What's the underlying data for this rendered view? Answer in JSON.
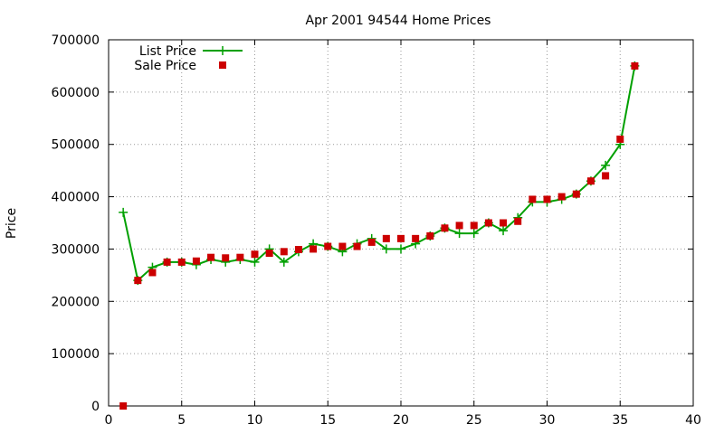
{
  "chart_data": {
    "type": "line",
    "title": "Apr 2001 94544 Home Prices",
    "xlabel": "",
    "ylabel": "Price",
    "xlim": [
      0,
      40
    ],
    "ylim": [
      0,
      700000
    ],
    "xticks": [
      0,
      5,
      10,
      15,
      20,
      25,
      30,
      35,
      40
    ],
    "yticks": [
      0,
      100000,
      200000,
      300000,
      400000,
      500000,
      600000,
      700000
    ],
    "grid": true,
    "legend_position": "top-left",
    "series": [
      {
        "name": "List Price",
        "style": "linespoints",
        "marker": "plus",
        "color": "#00a000",
        "x": [
          1,
          2,
          3,
          4,
          5,
          6,
          7,
          8,
          9,
          10,
          11,
          12,
          13,
          14,
          15,
          16,
          17,
          18,
          19,
          20,
          21,
          22,
          23,
          24,
          25,
          26,
          27,
          28,
          29,
          30,
          31,
          32,
          33,
          34,
          35,
          36
        ],
        "values": [
          370000,
          240000,
          265000,
          275000,
          275000,
          270000,
          280000,
          275000,
          280000,
          275000,
          300000,
          275000,
          295000,
          310000,
          305000,
          295000,
          310000,
          320000,
          300000,
          300000,
          310000,
          325000,
          340000,
          330000,
          330000,
          350000,
          335000,
          360000,
          390000,
          390000,
          395000,
          405000,
          430000,
          460000,
          500000,
          650000
        ]
      },
      {
        "name": "Sale Price",
        "style": "points",
        "marker": "square",
        "color": "#cc0000",
        "x": [
          1,
          2,
          3,
          4,
          5,
          6,
          7,
          8,
          9,
          10,
          11,
          12,
          13,
          14,
          15,
          16,
          17,
          18,
          19,
          20,
          21,
          22,
          23,
          24,
          25,
          26,
          27,
          28,
          29,
          30,
          31,
          32,
          33,
          34,
          35,
          36
        ],
        "values": [
          0,
          240000,
          255000,
          275000,
          275000,
          277000,
          284000,
          283000,
          284000,
          290000,
          292000,
          295000,
          299000,
          300000,
          305000,
          305000,
          305000,
          313000,
          320000,
          320000,
          320000,
          325000,
          340000,
          345000,
          345000,
          350000,
          350000,
          353000,
          395000,
          395000,
          400000,
          405000,
          430000,
          440000,
          510000,
          650000
        ]
      }
    ]
  }
}
